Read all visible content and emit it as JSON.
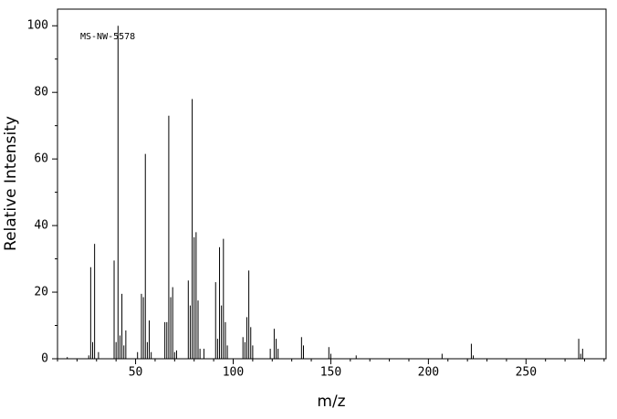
{
  "chart_data": {
    "type": "bar",
    "annotation": "MS-NW-5578",
    "x_label": "m/z",
    "y_label": "Relative Intensity",
    "color": "#000000",
    "x": [
      15,
      26,
      27,
      28,
      29,
      31,
      39,
      40,
      41,
      42,
      43,
      44,
      45,
      51,
      53,
      54,
      55,
      56,
      57,
      58,
      65,
      66,
      67,
      68,
      69,
      70,
      71,
      77,
      78,
      79,
      80,
      81,
      82,
      83,
      85,
      91,
      92,
      93,
      94,
      95,
      96,
      97,
      105,
      106,
      107,
      108,
      109,
      110,
      119,
      121,
      122,
      123,
      135,
      136,
      149,
      150,
      163,
      207,
      222,
      223,
      277,
      278,
      279
    ],
    "values": [
      0.5,
      1,
      27.5,
      5,
      34.5,
      2,
      29.5,
      5,
      100,
      7,
      19.5,
      4,
      8.5,
      2,
      19.5,
      18.5,
      61.5,
      5,
      11.5,
      2,
      11,
      11,
      73,
      18.5,
      21.5,
      2,
      2.5,
      23.5,
      16,
      78,
      36.5,
      38,
      17.5,
      3,
      3,
      23,
      6,
      33.5,
      16,
      36,
      11,
      4,
      6.5,
      5,
      12.5,
      26.5,
      9.5,
      4,
      3,
      9,
      6,
      3,
      6.5,
      4,
      3.5,
      1.5,
      1,
      1.5,
      4.5,
      1,
      6,
      1.5,
      3
    ],
    "xlim": [
      10,
      291
    ],
    "xticks": [
      50,
      100,
      150,
      200,
      250
    ],
    "ylim": [
      0,
      105
    ],
    "yticks": [
      0,
      20,
      40,
      60,
      80,
      100
    ]
  }
}
